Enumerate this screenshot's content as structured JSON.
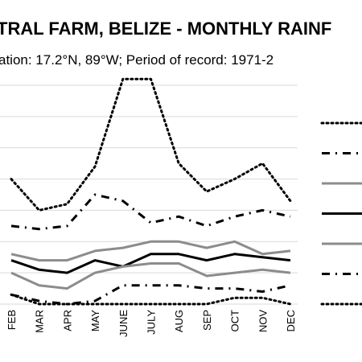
{
  "chart_data": {
    "type": "line",
    "title": "TRAL FARM, BELIZE - MONTHLY RAINF",
    "subtitle": "ation: 17.2°N, 89°W; Period of record: 1971-2",
    "categories": [
      "FEB",
      "MAR",
      "APR",
      "MAY",
      "JUNE",
      "JULY",
      "AUG",
      "SEP",
      "OCT",
      "NOV",
      "DEC"
    ],
    "ylim": [
      0,
      7
    ],
    "grid": true,
    "legend": "right",
    "series": [
      {
        "values": [
          4.0,
          3.0,
          3.2,
          4.4,
          7.2,
          7.2,
          4.5,
          3.6,
          4.0,
          4.5,
          3.3
        ],
        "color": "#000000",
        "style": "dotted"
      },
      {
        "values": [
          2.5,
          2.4,
          2.5,
          3.5,
          3.3,
          2.6,
          2.8,
          2.5,
          2.8,
          3.0,
          2.8
        ],
        "color": "#000000",
        "style": "dashdot"
      },
      {
        "values": [
          1.6,
          1.4,
          1.4,
          1.7,
          1.8,
          2.0,
          2.0,
          1.8,
          2.0,
          1.6,
          1.7
        ],
        "color": "#8c8c8c",
        "style": "solid"
      },
      {
        "values": [
          1.4,
          1.1,
          1.0,
          1.4,
          1.2,
          1.6,
          1.6,
          1.4,
          1.6,
          1.5,
          1.4
        ],
        "color": "#000000",
        "style": "solid"
      },
      {
        "values": [
          1.0,
          0.6,
          0.5,
          1.0,
          1.2,
          1.3,
          1.3,
          0.9,
          1.0,
          1.1,
          1.0
        ],
        "color": "#8c8c8c",
        "style": "solid"
      },
      {
        "values": [
          0.3,
          0.1,
          0.0,
          0.1,
          0.6,
          0.6,
          0.6,
          0.5,
          0.5,
          0.4,
          0.6
        ],
        "color": "#000000",
        "style": "dashdot"
      },
      {
        "values": [
          0.3,
          0.0,
          0.0,
          0.0,
          0.0,
          0.0,
          0.0,
          0.0,
          0.2,
          0.2,
          0.0
        ],
        "color": "#000000",
        "style": "dotted"
      }
    ]
  }
}
